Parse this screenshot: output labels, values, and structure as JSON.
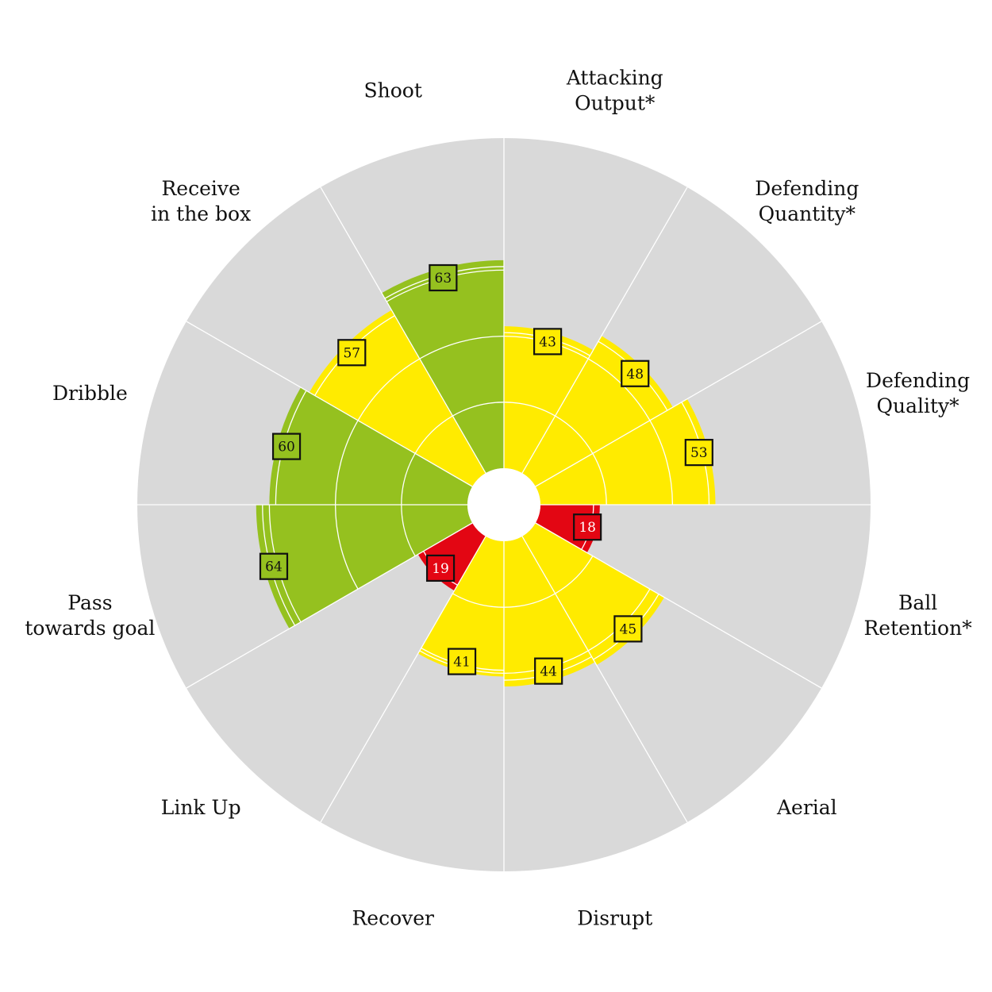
{
  "chart_data": {
    "type": "polar-bar",
    "range": [
      0,
      100
    ],
    "colors": {
      "background_wedge": "#d9d9d9",
      "grid": "#ffffff",
      "high": "#95c11f",
      "mid": "#ffeb00",
      "low": "#e30613",
      "box_border": "#111111",
      "text_dark": "#111111",
      "text_light": "#ffffff"
    },
    "categories": [
      {
        "label_lines": [
          "Attacking",
          "Output*"
        ],
        "value": 43,
        "band": "mid"
      },
      {
        "label_lines": [
          "Defending",
          "Quantity*"
        ],
        "value": 48,
        "band": "mid"
      },
      {
        "label_lines": [
          "Defending",
          "Quality*"
        ],
        "value": 53,
        "band": "mid"
      },
      {
        "label_lines": [
          "Ball",
          "Retention*"
        ],
        "value": 18,
        "band": "low"
      },
      {
        "label_lines": [
          "Aerial"
        ],
        "value": 45,
        "band": "mid"
      },
      {
        "label_lines": [
          "Disrupt"
        ],
        "value": 44,
        "band": "mid"
      },
      {
        "label_lines": [
          "Recover"
        ],
        "value": 41,
        "band": "mid"
      },
      {
        "label_lines": [
          "Link Up"
        ],
        "value": 19,
        "band": "low"
      },
      {
        "label_lines": [
          "Pass",
          "towards goal"
        ],
        "value": 64,
        "band": "high"
      },
      {
        "label_lines": [
          "Dribble"
        ],
        "value": 60,
        "band": "high"
      },
      {
        "label_lines": [
          "Receive",
          "in the box"
        ],
        "value": 57,
        "band": "mid"
      },
      {
        "label_lines": [
          "Shoot"
        ],
        "value": 63,
        "band": "high"
      }
    ]
  }
}
